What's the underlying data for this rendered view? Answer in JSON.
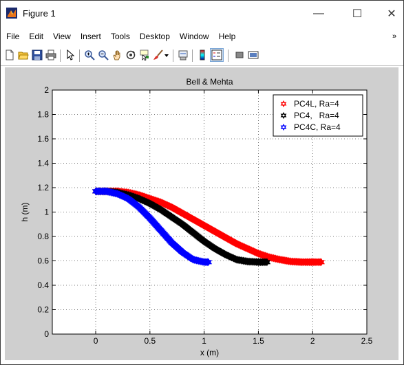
{
  "window": {
    "title": "Figure 1",
    "minimize_glyph": "—",
    "maximize_glyph": "☐",
    "close_glyph": "✕",
    "overflow_glyph": "»"
  },
  "menu": [
    "File",
    "Edit",
    "View",
    "Insert",
    "Tools",
    "Desktop",
    "Window",
    "Help"
  ],
  "toolbar": {
    "icons": [
      "new-figure-icon",
      "open-file-icon",
      "save-icon",
      "print-icon",
      "edit-plot-arrow-icon",
      "zoom-in-icon",
      "zoom-out-icon",
      "pan-hand-icon",
      "rotate-3d-icon",
      "data-cursor-icon",
      "brush-icon",
      "brush-dropdown-icon",
      "link-plot-icon",
      "insert-colorbar-icon",
      "insert-legend-icon",
      "hide-plot-tools-icon",
      "show-plot-tools-icon"
    ]
  },
  "colors": {
    "figure_bg": "#cfcfcf",
    "axes_bg": "#ffffff",
    "red": "#ff0000",
    "black": "#000000",
    "blue": "#0000ff"
  },
  "chart_data": {
    "type": "scatter",
    "title": "Bell & Mehta",
    "xlabel": "x (m)",
    "ylabel": "h (m)",
    "xlim": [
      -0.4,
      2.5
    ],
    "ylim": [
      0,
      2
    ],
    "xticks": [
      0,
      0.5,
      1,
      1.5,
      2,
      2.5
    ],
    "xtick_labels": [
      "0",
      "0.5",
      "1",
      "1.5",
      "2",
      "2.5"
    ],
    "yticks": [
      0,
      0.2,
      0.4,
      0.6,
      0.8,
      1,
      1.2,
      1.4,
      1.6,
      1.8,
      2
    ],
    "ytick_labels": [
      "0",
      "0.2",
      "0.4",
      "0.6",
      "0.8",
      "1",
      "1.2",
      "1.4",
      "1.6",
      "1.8",
      "2"
    ],
    "grid": true,
    "legend_position": "top-right",
    "marker": "hexagram",
    "series": [
      {
        "name": "PC4L, Ra=4",
        "color": "#ff0000",
        "x": [
          0,
          0.1,
          0.2,
          0.3,
          0.4,
          0.5,
          0.6,
          0.7,
          0.8,
          0.9,
          1.0,
          1.1,
          1.2,
          1.3,
          1.4,
          1.5,
          1.6,
          1.7,
          1.8,
          1.9,
          2.0,
          2.08
        ],
        "y": [
          1.17,
          1.17,
          1.17,
          1.16,
          1.14,
          1.11,
          1.08,
          1.04,
          0.99,
          0.94,
          0.89,
          0.84,
          0.79,
          0.74,
          0.7,
          0.66,
          0.63,
          0.61,
          0.595,
          0.59,
          0.59,
          0.59
        ]
      },
      {
        "name": "PC4,   Ra=4",
        "color": "#000000",
        "x": [
          0,
          0.1,
          0.2,
          0.3,
          0.4,
          0.5,
          0.6,
          0.7,
          0.8,
          0.9,
          1.0,
          1.1,
          1.2,
          1.3,
          1.4,
          1.5,
          1.58
        ],
        "y": [
          1.17,
          1.17,
          1.16,
          1.14,
          1.11,
          1.07,
          1.02,
          0.96,
          0.9,
          0.83,
          0.76,
          0.7,
          0.65,
          0.61,
          0.595,
          0.59,
          0.59
        ]
      },
      {
        "name": "PC4C, Ra=4",
        "color": "#0000ff",
        "x": [
          0,
          0.1,
          0.2,
          0.3,
          0.4,
          0.5,
          0.6,
          0.7,
          0.8,
          0.9,
          1.0,
          1.04
        ],
        "y": [
          1.17,
          1.17,
          1.15,
          1.11,
          1.04,
          0.95,
          0.85,
          0.75,
          0.67,
          0.61,
          0.59,
          0.59
        ]
      }
    ]
  }
}
